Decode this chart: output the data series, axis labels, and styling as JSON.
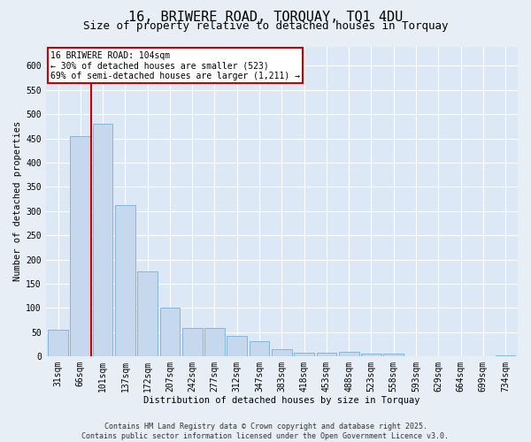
{
  "title": "16, BRIWERE ROAD, TORQUAY, TQ1 4DU",
  "subtitle": "Size of property relative to detached houses in Torquay",
  "xlabel": "Distribution of detached houses by size in Torquay",
  "ylabel": "Number of detached properties",
  "bar_color": "#c5d8ee",
  "bar_edge_color": "#7aadd4",
  "background_color": "#dce8f5",
  "fig_background_color": "#e8eef5",
  "grid_color": "#ffffff",
  "vline_color": "#cc0000",
  "annotation_text": "16 BRIWERE ROAD: 104sqm\n← 30% of detached houses are smaller (523)\n69% of semi-detached houses are larger (1,211) →",
  "annotation_box_color": "#cc0000",
  "categories": [
    "31sqm",
    "66sqm",
    "101sqm",
    "137sqm",
    "172sqm",
    "207sqm",
    "242sqm",
    "277sqm",
    "312sqm",
    "347sqm",
    "383sqm",
    "418sqm",
    "453sqm",
    "488sqm",
    "523sqm",
    "558sqm",
    "593sqm",
    "629sqm",
    "664sqm",
    "699sqm",
    "734sqm"
  ],
  "values": [
    55,
    455,
    480,
    313,
    175,
    100,
    58,
    58,
    42,
    32,
    15,
    8,
    8,
    9,
    6,
    6,
    0,
    1,
    0,
    0,
    3
  ],
  "ylim": [
    0,
    640
  ],
  "yticks": [
    0,
    50,
    100,
    150,
    200,
    250,
    300,
    350,
    400,
    450,
    500,
    550,
    600
  ],
  "footer_text": "Contains HM Land Registry data © Crown copyright and database right 2025.\nContains public sector information licensed under the Open Government Licence v3.0.",
  "title_fontsize": 11,
  "subtitle_fontsize": 9,
  "axis_fontsize": 7.5,
  "tick_fontsize": 7,
  "footer_fontsize": 6
}
